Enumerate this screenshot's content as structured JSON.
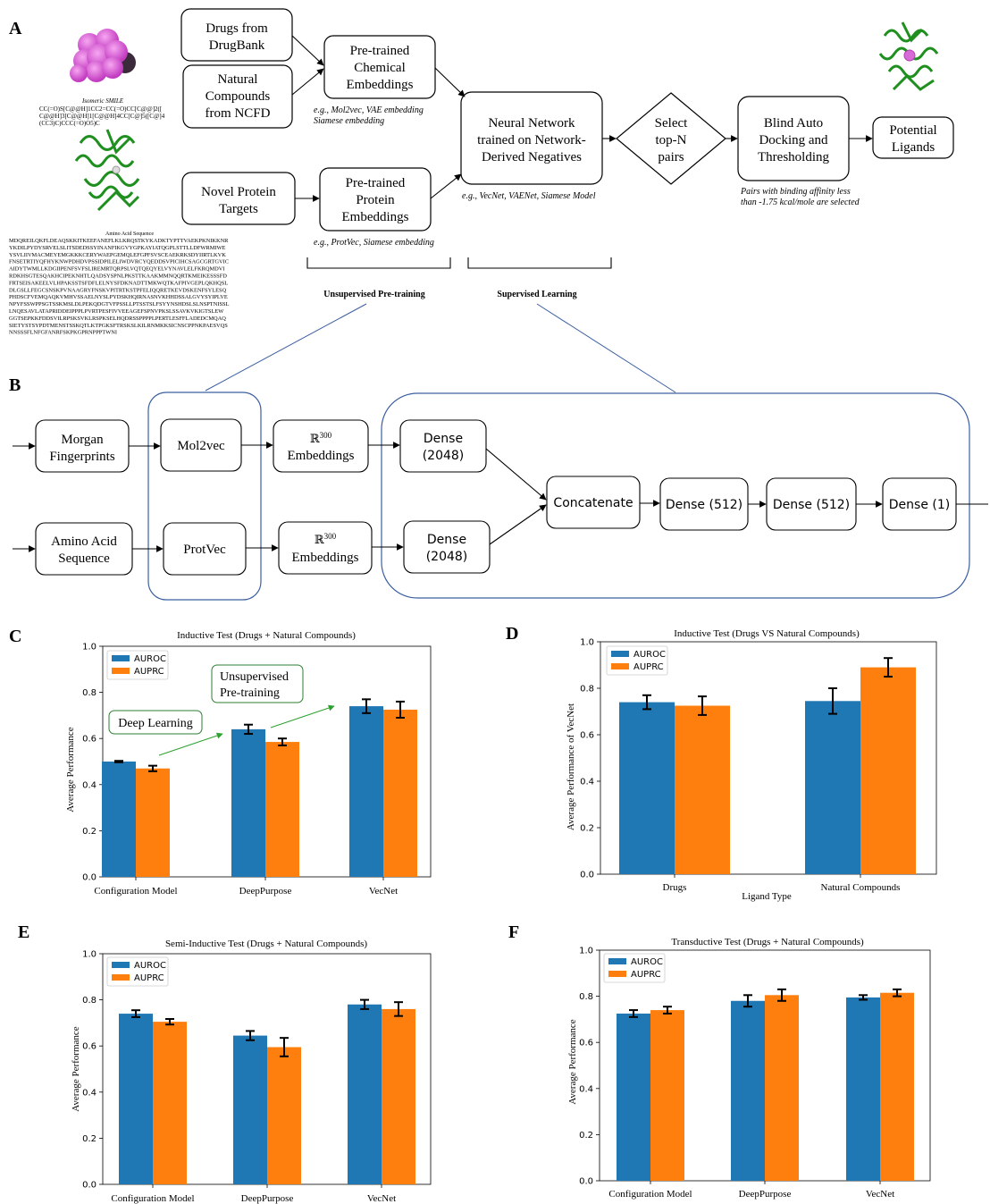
{
  "panel_labels": {
    "a": "A",
    "b": "B",
    "c": "C",
    "d": "D",
    "e": "E",
    "f": "F"
  },
  "panel_a": {
    "isomeric_label": "Isomeric SMILE",
    "smiles_lines": [
      "CC(=O)S[C@@H]1CC2=CC(=O)CC[C@@]2([",
      "C@@H]3[C@@H]1[C@@H]4CC[C@]5([C@]4",
      "(CC3)C)CCC(=O)O5)C"
    ],
    "amino_label": "Amino Acid Sequence",
    "amino_lines": [
      "MDQREILQKFLDEAQSKKITKEEFANEFLKLKRQSTKYKADKTYPTTVAEKPKNIKKNR",
      "YKDILPYDYSRVELSLITSDEDSSYINANFIKGVYGPKAYIATQGPLSTTLLDFWRMIWE",
      "YSVLIIVMACMEYEMGKKKCERYWAEPGEMQLEFGPFSVSCEAEKRKSDYIIRTLKVK",
      "FNSETRTIYQFHYKNWPDHDVPSSIDPILELIWDVRCYQEDDSVPICIHCSAGCGRTGVIC",
      "AIDYTWMLLKDGIIPENFSVFSLIREMRTQRPSLVQTQEQYELVYNAVLELFKRQMDVI",
      "RDKHSGTESQAKHCIPEKNHTLQADSYSPNLPKSTTKAAKMMNQQRTKMEIKESSSFD",
      "FRTSEISAKEELVLHPAKSSTSFDFLELNYSFDKNADTTMKWQTKAFPIVGEPLQKHQSL",
      "DLGSLLFEGCSNSKPVNAAGRYFNSKVPITRTKSTPFELIQQRETKEVDSKENFSYLESQ",
      "PHDSCFVEMQAQKVMHVSSAELNYSLPYDSKHQIRNASNVKHHDSSALGVYSYIPLVE",
      "NPYFSSWPPSGTSSKMSLDLPEKQDGTVFPSSLLPTSSTSLFSYYNSHDSLSLNSPTNISSL",
      "LNQESAVLATAPRIDDEIPPPLPVRTPESFIVVEEAGEFSPNVPKSLSSAVKVKIGTSLEW",
      "GGTSEPKKFDDSVILRPSKSVKLRSPKSELHQDRSSPPPPLPERTLESFFLADEDCMQAQ",
      "SIETYSTSYPDTMENSTSSKQTLKTPGKSFTRSKSLKILRNMKKSICNSCPPNKPAESVQS",
      "NNSSSFLNFGFANRFSKPKGPRNPPPTWNI"
    ],
    "boxes": {
      "drugbank": [
        "Drugs from",
        "DrugBank"
      ],
      "ncfd": [
        "Natural",
        "Compounds",
        "from NCFD"
      ],
      "chem_emb": [
        "Pre-trained",
        "Chemical",
        "Embeddings"
      ],
      "protein_targets": [
        "Novel Protein",
        "Targets"
      ],
      "prot_emb": [
        "Pre-trained",
        "Protein",
        "Embeddings"
      ],
      "nn": [
        "Neural Network",
        "trained on Network-",
        "Derived Negatives"
      ],
      "select": [
        "Select",
        "top-N",
        "pairs"
      ],
      "docking": [
        "Blind Auto",
        "Docking and",
        "Thresholding"
      ],
      "ligands": [
        "Potential",
        "Ligands"
      ]
    },
    "notes": {
      "chem": [
        "e.g., Mol2vec, VAE embedding",
        "Siamese embedding"
      ],
      "prot": "e.g., ProtVec, Siamese embedding",
      "nn": "e.g., VecNet, VAENet, Siamese Model",
      "docking": [
        "Pairs with binding affinity less",
        "than -1.75 kcal/mole are selected"
      ]
    },
    "braces": {
      "unsupervised": "Unsupervised Pre-training",
      "supervised": "Supervised Learning"
    }
  },
  "panel_b": {
    "morgan": [
      "Morgan",
      "Fingerprints"
    ],
    "mol2vec": "Mol2vec",
    "emb_top": {
      "base": "ℝ",
      "sup": "300",
      "label": "Embeddings"
    },
    "dense_top": [
      "Dense",
      "(2048)"
    ],
    "amino": [
      "Amino Acid",
      "Sequence"
    ],
    "protvec": "ProtVec",
    "emb_bottom": {
      "base": "ℝ",
      "sup": "300",
      "label": "Embeddings"
    },
    "dense_bottom": [
      "Dense",
      "(2048)"
    ],
    "concat": "Concatenate",
    "dense512a": "Dense (512)",
    "dense512b": "Dense (512)",
    "dense1": "Dense (1)"
  },
  "colors": {
    "auroc": "#1f77b4",
    "auprc": "#ff7f0e",
    "arrow_green": "#2ca02c",
    "diagram_blue": "#3b5fa0"
  },
  "annotations": {
    "deep_learning": "Deep Learning",
    "unsupervised": [
      "Unsupervised",
      "Pre-training"
    ]
  },
  "chart_data": [
    {
      "id": "C",
      "type": "bar",
      "title": "Inductive Test (Drugs + Natural Compounds)",
      "xlabel": "",
      "ylabel": "Average Performance",
      "categories": [
        "Configuration Model",
        "DeepPurpose",
        "VecNet"
      ],
      "series": [
        {
          "name": "AUROC",
          "values": [
            0.5,
            0.64,
            0.74
          ],
          "errors": [
            0.003,
            0.02,
            0.03
          ]
        },
        {
          "name": "AUPRC",
          "values": [
            0.47,
            0.585,
            0.725
          ],
          "errors": [
            0.012,
            0.015,
            0.035
          ]
        }
      ],
      "ylim": [
        0,
        1.0
      ],
      "yticks": [
        "0.0",
        "0.2",
        "0.4",
        "0.6",
        "0.8",
        "1.0"
      ],
      "legend": "top-left",
      "grid": false
    },
    {
      "id": "D",
      "type": "bar",
      "title": "Inductive Test (Drugs VS Natural Compounds)",
      "xlabel": "Ligand Type",
      "ylabel": "Average Performance of VecNet",
      "categories": [
        "Drugs",
        "Natural Compounds"
      ],
      "series": [
        {
          "name": "AUROC",
          "values": [
            0.74,
            0.745
          ],
          "errors": [
            0.03,
            0.055
          ]
        },
        {
          "name": "AUPRC",
          "values": [
            0.725,
            0.89
          ],
          "errors": [
            0.04,
            0.04
          ]
        }
      ],
      "ylim": [
        0,
        1.0
      ],
      "yticks": [
        "0.0",
        "0.2",
        "0.4",
        "0.6",
        "0.8",
        "1.0"
      ],
      "legend": "top-left",
      "grid": false
    },
    {
      "id": "E",
      "type": "bar",
      "title": "Semi-Inductive Test (Drugs + Natural Compounds)",
      "xlabel": "",
      "ylabel": "Average Performance",
      "categories": [
        "Configuration Model",
        "DeepPurpose",
        "VecNet"
      ],
      "series": [
        {
          "name": "AUROC",
          "values": [
            0.74,
            0.645,
            0.78
          ],
          "errors": [
            0.015,
            0.02,
            0.02
          ]
        },
        {
          "name": "AUPRC",
          "values": [
            0.705,
            0.595,
            0.76
          ],
          "errors": [
            0.012,
            0.04,
            0.03
          ]
        }
      ],
      "ylim": [
        0,
        1.0
      ],
      "yticks": [
        "0.0",
        "0.2",
        "0.4",
        "0.6",
        "0.8",
        "1.0"
      ],
      "legend": "top-left",
      "grid": false
    },
    {
      "id": "F",
      "type": "bar",
      "title": "Transductive Test (Drugs + Natural Compounds)",
      "xlabel": "",
      "ylabel": "Average Performance",
      "categories": [
        "Configuration Model",
        "DeepPurpose",
        "VecNet"
      ],
      "series": [
        {
          "name": "AUROC",
          "values": [
            0.725,
            0.78,
            0.795
          ],
          "errors": [
            0.015,
            0.025,
            0.01
          ]
        },
        {
          "name": "AUPRC",
          "values": [
            0.74,
            0.805,
            0.815
          ],
          "errors": [
            0.015,
            0.025,
            0.015
          ]
        }
      ],
      "ylim": [
        0,
        1.0
      ],
      "yticks": [
        "0.0",
        "0.2",
        "0.4",
        "0.6",
        "0.8",
        "1.0"
      ],
      "legend": "top-left",
      "grid": false
    }
  ]
}
